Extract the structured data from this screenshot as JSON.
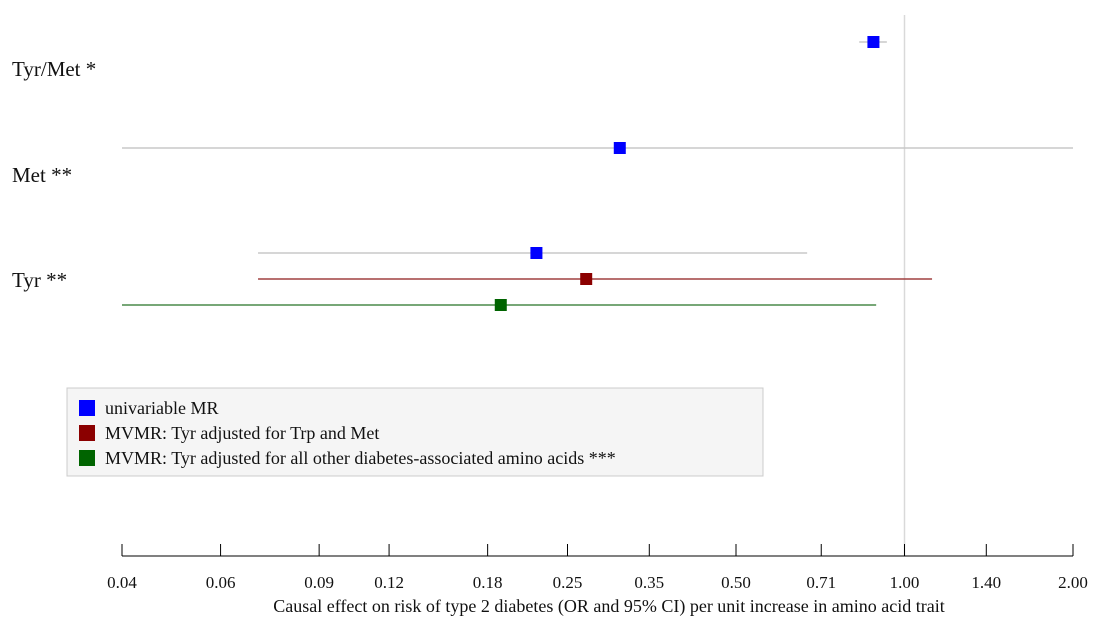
{
  "chart_data": {
    "type": "forest",
    "xlabel": "Causal effect on risk of type 2 diabetes (OR and 95% CI) per unit increase in amino acid trait",
    "x_scale": "log",
    "xlim": [
      0.04,
      2.0
    ],
    "x_ticks": [
      0.04,
      0.06,
      0.09,
      0.12,
      0.18,
      0.25,
      0.35,
      0.5,
      0.71,
      1.0,
      1.4,
      2.0
    ],
    "x_tick_labels": [
      "0.04",
      "0.06",
      "0.09",
      "0.12",
      "0.18",
      "0.25",
      "0.35",
      "0.50",
      "0.71",
      "1.00",
      "1.40",
      "2.00"
    ],
    "reference_line": 1.0,
    "rows": [
      {
        "label": "Tyr/Met *",
        "estimates": [
          {
            "series": "univariable MR",
            "or": 0.88,
            "lower": 0.83,
            "upper": 0.93
          }
        ]
      },
      {
        "label": "Met **",
        "estimates": [
          {
            "series": "univariable MR",
            "or": 0.31,
            "lower": 0.04,
            "upper": 2.0
          }
        ]
      },
      {
        "label": "Tyr **",
        "estimates": [
          {
            "series": "univariable MR",
            "or": 0.22,
            "lower": 0.07,
            "upper": 0.67
          },
          {
            "series": "MVMR: Tyr adjusted for Trp and Met",
            "or": 0.27,
            "lower": 0.07,
            "upper": 1.12
          },
          {
            "series": "MVMR: Tyr adjusted for all other diabetes-associated amino acids ***",
            "or": 0.19,
            "lower": 0.04,
            "upper": 0.89
          }
        ]
      }
    ],
    "series": [
      {
        "name": "univariable MR",
        "point_color": "#0000ff",
        "line_color": "#c8c8c8"
      },
      {
        "name": "MVMR: Tyr adjusted for Trp and Met",
        "point_color": "#8b0000",
        "line_color": "#a04040"
      },
      {
        "name": "MVMR: Tyr adjusted for all other diabetes-associated amino acids ***",
        "point_color": "#006400",
        "line_color": "#4a8a4a"
      }
    ],
    "legend": {
      "position": "bottom-left"
    },
    "grid": false
  }
}
